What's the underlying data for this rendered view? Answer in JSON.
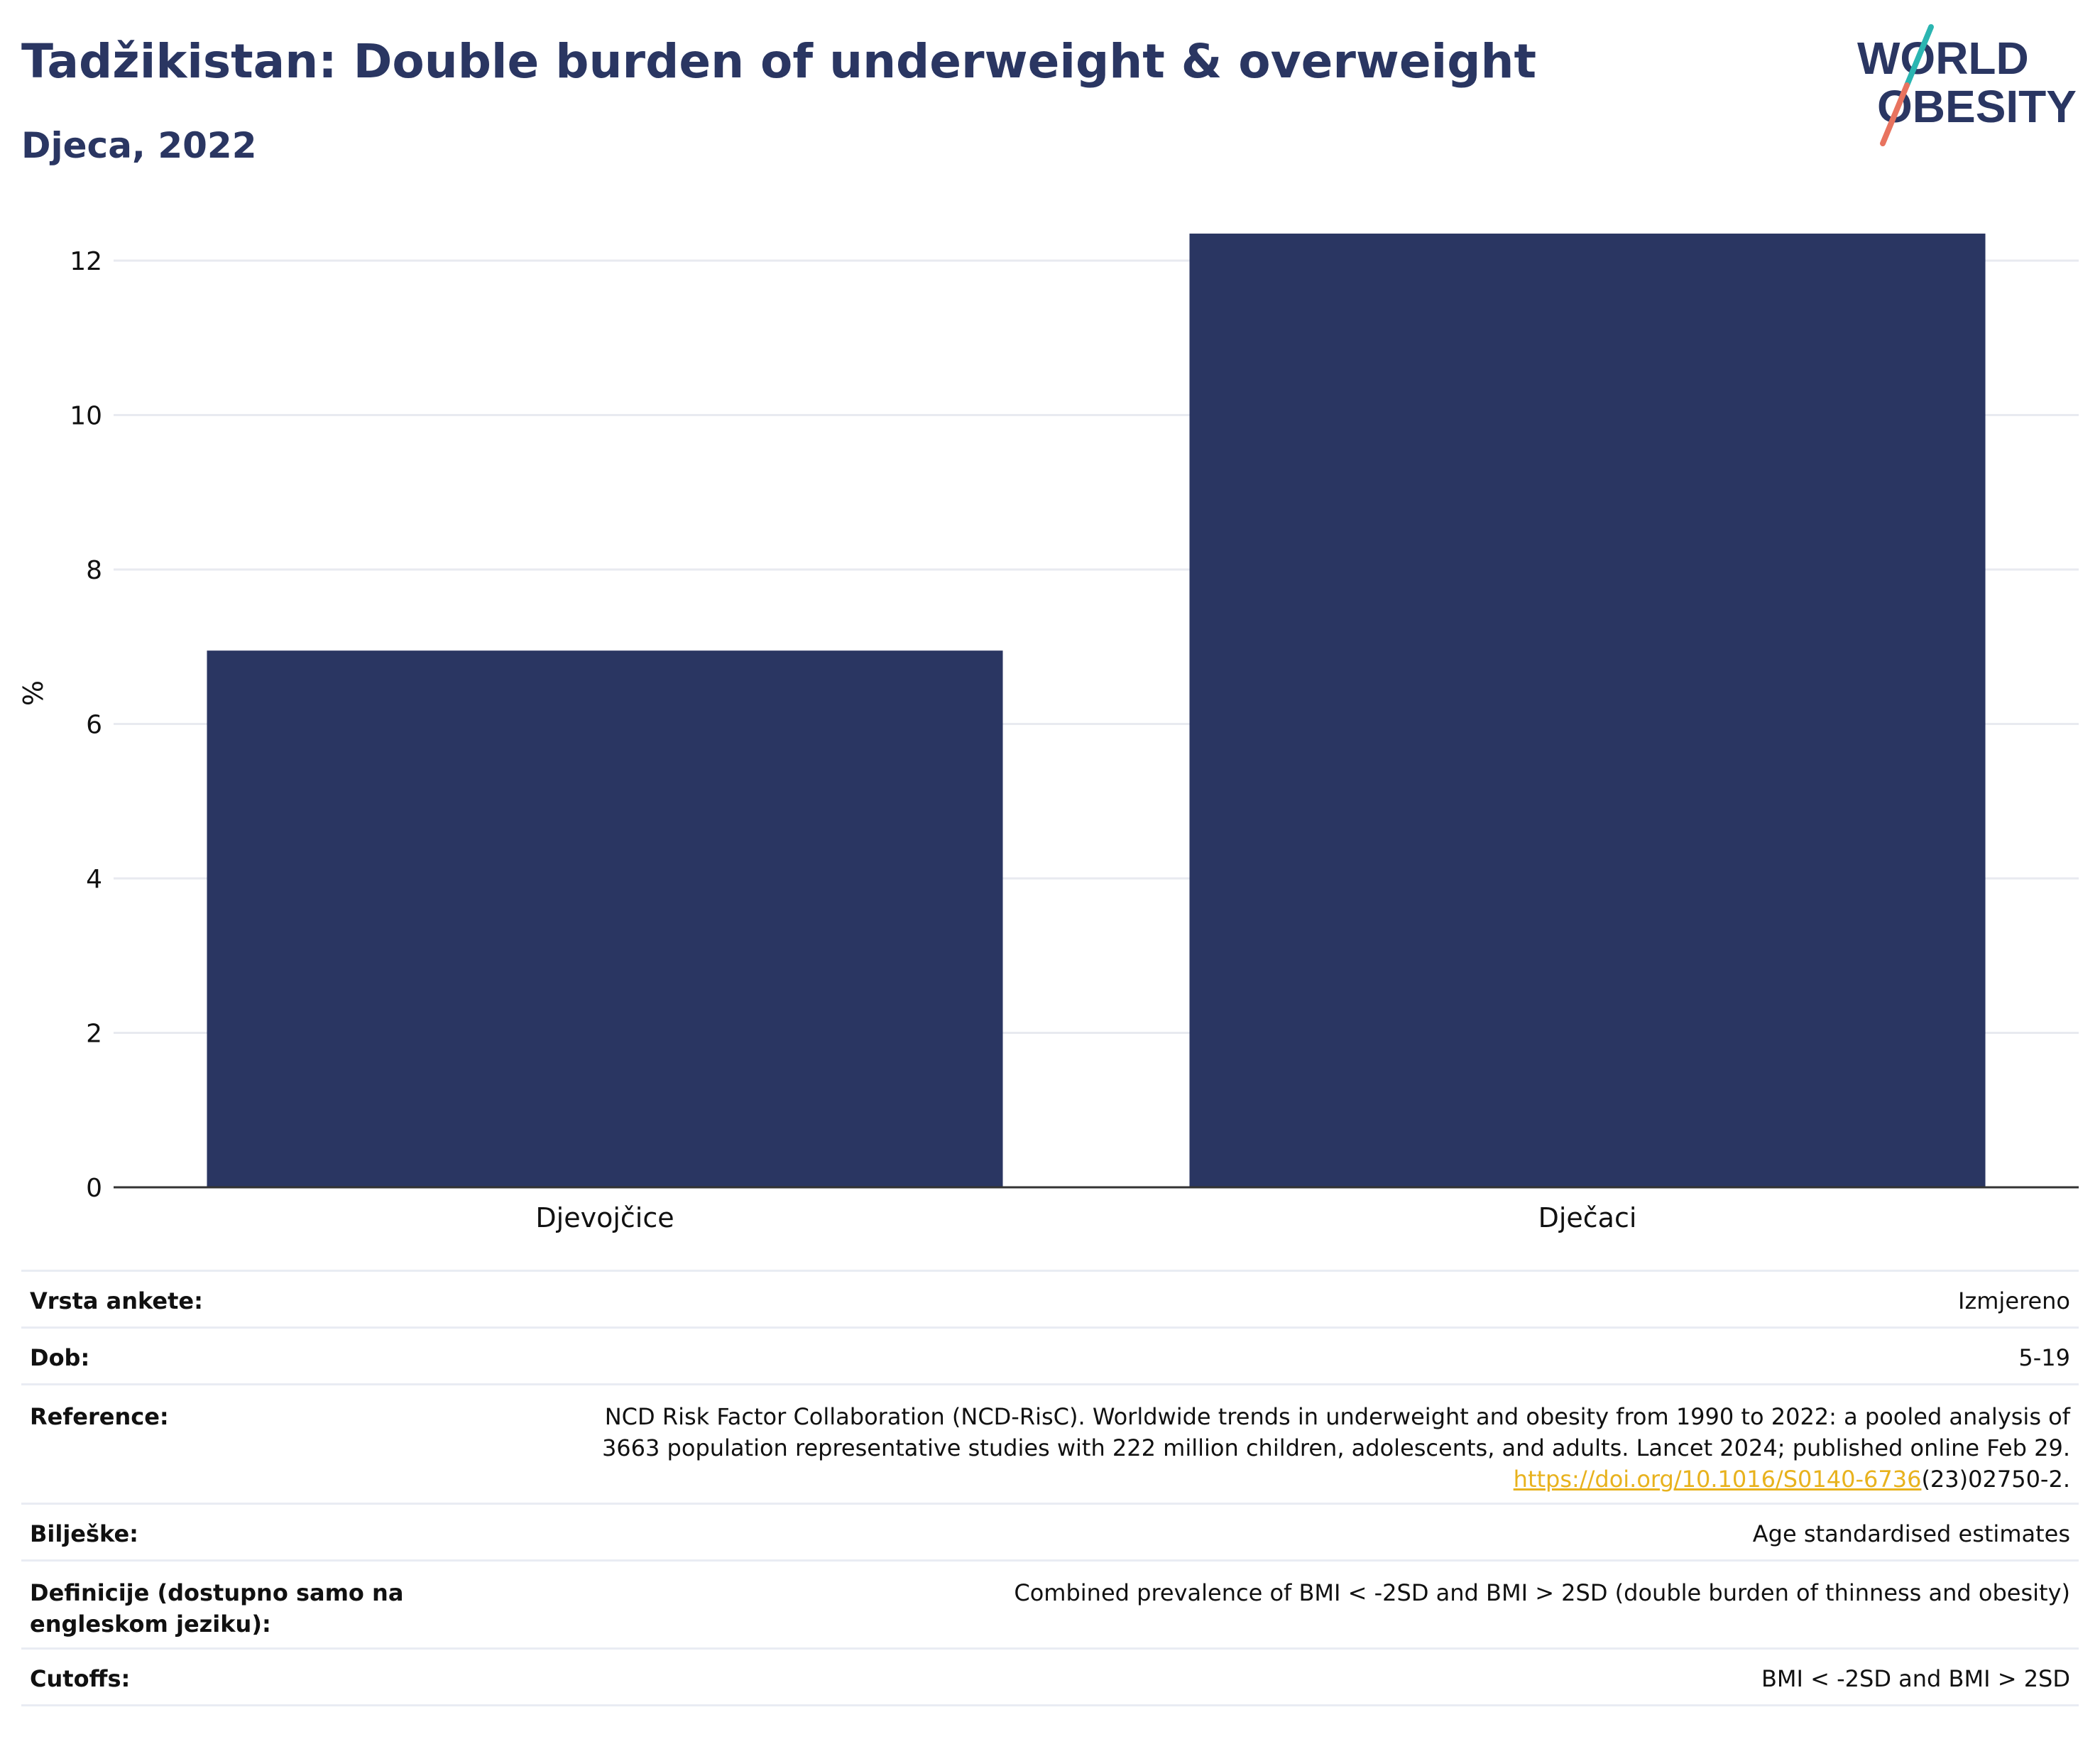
{
  "header": {
    "title": "Tadžikistan: Double burden of underweight & overweight",
    "subtitle": "Djeca, 2022",
    "logo_line1": "WORLD",
    "logo_line2": "OBESITY"
  },
  "chart_data": {
    "type": "bar",
    "categories": [
      "Djevojčice",
      "Dječaci"
    ],
    "values": [
      6.95,
      12.35
    ],
    "ylabel": "%",
    "xlabel": "",
    "ylim": [
      0,
      12.8
    ],
    "yticks": [
      "0",
      "2",
      "4",
      "6",
      "8",
      "10",
      "12"
    ],
    "grid": true,
    "bar_color": "#2a3662"
  },
  "info": {
    "survey_label": "Vrsta ankete:",
    "survey_value": "Izmjereno",
    "age_label": "Dob:",
    "age_value": "5-19",
    "reference_label": "Reference:",
    "reference_line1": "NCD Risk Factor Collaboration (NCD-RisC). Worldwide trends in underweight and obesity from 1990 to 2022: a pooled analysis of",
    "reference_line2": "3663 population representative studies with 222 million children, adolescents, and adults. Lancet 2024; published online Feb 29.",
    "reference_link": "https://doi.org/10.1016/S0140-6736",
    "reference_tail": "(23)02750-2.",
    "notes_label": "Bilješke:",
    "notes_value": "Age standardised estimates",
    "definitions_label": "Definicije (dostupno samo na engleskom jeziku):",
    "definitions_value": "Combined prevalence of BMI < -2SD and BMI > 2SD (double burden of thinness and obesity)",
    "cutoffs_label": "Cutoffs:",
    "cutoffs_value": "BMI < -2SD and BMI > 2SD"
  },
  "colors": {
    "brand": "#2a3662",
    "logo_teal": "#2bb5b1",
    "logo_coral": "#e8735f",
    "link": "#e8b21d"
  }
}
